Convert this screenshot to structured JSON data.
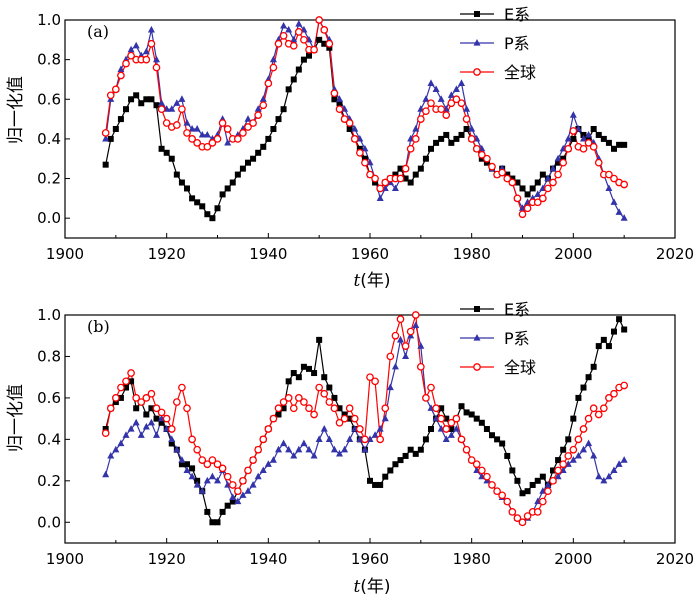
{
  "chart_data": [
    {
      "type": "line",
      "panel_label": "(a)",
      "xlabel_var": "t",
      "xlabel_unit": "(年)",
      "ylabel": "归一化值",
      "xlim": [
        1900,
        2020
      ],
      "ylim": [
        -0.1,
        1.0
      ],
      "xticks": [
        1900,
        1920,
        1940,
        1960,
        1980,
        2000,
        2020
      ],
      "yticks": [
        0.0,
        0.2,
        0.4,
        0.6,
        0.8,
        1.0
      ],
      "ytick_labels": [
        "0.0",
        "0.2",
        "0.4",
        "0.6",
        "0.8",
        "1.0"
      ],
      "grid": false,
      "legend": "top-right",
      "x": [
        1908,
        1909,
        1910,
        1911,
        1912,
        1913,
        1914,
        1915,
        1916,
        1917,
        1918,
        1919,
        1920,
        1921,
        1922,
        1923,
        1924,
        1925,
        1926,
        1927,
        1928,
        1929,
        1930,
        1931,
        1932,
        1933,
        1934,
        1935,
        1936,
        1937,
        1938,
        1939,
        1940,
        1941,
        1942,
        1943,
        1944,
        1945,
        1946,
        1947,
        1948,
        1949,
        1950,
        1951,
        1952,
        1953,
        1954,
        1955,
        1956,
        1957,
        1958,
        1959,
        1960,
        1961,
        1962,
        1963,
        1964,
        1965,
        1966,
        1967,
        1968,
        1969,
        1970,
        1971,
        1972,
        1973,
        1974,
        1975,
        1976,
        1977,
        1978,
        1979,
        1980,
        1981,
        1982,
        1983,
        1984,
        1985,
        1986,
        1987,
        1988,
        1989,
        1990,
        1991,
        1992,
        1993,
        1994,
        1995,
        1996,
        1997,
        1998,
        1999,
        2000,
        2001,
        2002,
        2003,
        2004,
        2005,
        2006,
        2007,
        2008,
        2009,
        2010
      ],
      "series": [
        {
          "name": "E系",
          "color": "#000000",
          "marker": "square",
          "values": [
            0.27,
            0.4,
            0.45,
            0.5,
            0.55,
            0.6,
            0.62,
            0.58,
            0.6,
            0.6,
            0.57,
            0.35,
            0.33,
            0.3,
            0.22,
            0.18,
            0.15,
            0.1,
            0.08,
            0.06,
            0.02,
            0.0,
            0.05,
            0.12,
            0.15,
            0.18,
            0.22,
            0.25,
            0.28,
            0.3,
            0.33,
            0.36,
            0.4,
            0.45,
            0.5,
            0.55,
            0.65,
            0.7,
            0.75,
            0.8,
            0.82,
            0.85,
            0.9,
            0.88,
            0.86,
            0.6,
            0.58,
            0.5,
            0.45,
            0.4,
            0.35,
            0.3,
            0.22,
            0.18,
            0.15,
            0.18,
            0.2,
            0.22,
            0.25,
            0.2,
            0.18,
            0.22,
            0.25,
            0.3,
            0.35,
            0.38,
            0.4,
            0.42,
            0.38,
            0.4,
            0.42,
            0.45,
            0.4,
            0.35,
            0.3,
            0.28,
            0.25,
            0.22,
            0.25,
            0.22,
            0.2,
            0.18,
            0.15,
            0.12,
            0.15,
            0.18,
            0.22,
            0.2,
            0.25,
            0.28,
            0.3,
            0.35,
            0.4,
            0.45,
            0.42,
            0.4,
            0.45,
            0.42,
            0.4,
            0.38,
            0.35,
            0.37,
            0.37
          ]
        },
        {
          "name": "P系",
          "color": "#3333aa",
          "marker": "triangle",
          "values": [
            0.4,
            0.6,
            0.65,
            0.75,
            0.8,
            0.85,
            0.87,
            0.82,
            0.84,
            0.95,
            0.8,
            0.58,
            0.55,
            0.55,
            0.58,
            0.6,
            0.48,
            0.45,
            0.45,
            0.42,
            0.42,
            0.4,
            0.42,
            0.5,
            0.38,
            0.4,
            0.42,
            0.45,
            0.5,
            0.48,
            0.55,
            0.6,
            0.7,
            0.8,
            0.9,
            0.97,
            0.95,
            0.9,
            0.98,
            0.95,
            0.9,
            0.85,
            1.0,
            0.95,
            0.9,
            0.65,
            0.6,
            0.55,
            0.5,
            0.45,
            0.4,
            0.35,
            0.28,
            0.2,
            0.1,
            0.15,
            0.18,
            0.15,
            0.2,
            0.25,
            0.4,
            0.45,
            0.55,
            0.6,
            0.68,
            0.65,
            0.6,
            0.55,
            0.62,
            0.65,
            0.68,
            0.55,
            0.45,
            0.4,
            0.35,
            0.3,
            0.25,
            0.22,
            0.25,
            0.2,
            0.18,
            0.1,
            0.05,
            0.08,
            0.1,
            0.12,
            0.15,
            0.2,
            0.25,
            0.3,
            0.35,
            0.4,
            0.52,
            0.45,
            0.4,
            0.42,
            0.38,
            0.3,
            0.22,
            0.15,
            0.08,
            0.03,
            0.0
          ]
        },
        {
          "name": "全球",
          "color": "#ff0000",
          "marker": "circle",
          "values": [
            0.43,
            0.62,
            0.65,
            0.72,
            0.78,
            0.82,
            0.8,
            0.8,
            0.8,
            0.88,
            0.76,
            0.55,
            0.48,
            0.46,
            0.47,
            0.55,
            0.43,
            0.4,
            0.38,
            0.36,
            0.36,
            0.38,
            0.4,
            0.48,
            0.45,
            0.4,
            0.4,
            0.43,
            0.46,
            0.48,
            0.52,
            0.57,
            0.68,
            0.76,
            0.88,
            0.92,
            0.88,
            0.87,
            0.94,
            0.9,
            0.85,
            0.85,
            1.0,
            0.95,
            0.88,
            0.63,
            0.55,
            0.5,
            0.48,
            0.4,
            0.33,
            0.28,
            0.22,
            0.2,
            0.15,
            0.18,
            0.2,
            0.2,
            0.2,
            0.25,
            0.35,
            0.4,
            0.5,
            0.54,
            0.58,
            0.55,
            0.55,
            0.52,
            0.58,
            0.6,
            0.58,
            0.5,
            0.4,
            0.35,
            0.32,
            0.3,
            0.26,
            0.22,
            0.23,
            0.2,
            0.18,
            0.1,
            0.02,
            0.05,
            0.08,
            0.08,
            0.1,
            0.15,
            0.18,
            0.22,
            0.28,
            0.35,
            0.44,
            0.36,
            0.35,
            0.38,
            0.36,
            0.28,
            0.22,
            0.22,
            0.2,
            0.18,
            0.17
          ]
        }
      ]
    },
    {
      "type": "line",
      "panel_label": "(b)",
      "xlabel_var": "t",
      "xlabel_unit": "(年)",
      "ylabel": "归一化值",
      "xlim": [
        1900,
        2020
      ],
      "ylim": [
        -0.1,
        1.0
      ],
      "xticks": [
        1900,
        1920,
        1940,
        1960,
        1980,
        2000,
        2020
      ],
      "yticks": [
        0.0,
        0.2,
        0.4,
        0.6,
        0.8,
        1.0
      ],
      "ytick_labels": [
        "0.0",
        "0.2",
        "0.4",
        "0.6",
        "0.8",
        "1.0"
      ],
      "grid": false,
      "legend": "top-right",
      "x": [
        1908,
        1909,
        1910,
        1911,
        1912,
        1913,
        1914,
        1915,
        1916,
        1917,
        1918,
        1919,
        1920,
        1921,
        1922,
        1923,
        1924,
        1925,
        1926,
        1927,
        1928,
        1929,
        1930,
        1931,
        1932,
        1933,
        1934,
        1935,
        1936,
        1937,
        1938,
        1939,
        1940,
        1941,
        1942,
        1943,
        1944,
        1945,
        1946,
        1947,
        1948,
        1949,
        1950,
        1951,
        1952,
        1953,
        1954,
        1955,
        1956,
        1957,
        1958,
        1959,
        1960,
        1961,
        1962,
        1963,
        1964,
        1965,
        1966,
        1967,
        1968,
        1969,
        1970,
        1971,
        1972,
        1973,
        1974,
        1975,
        1976,
        1977,
        1978,
        1979,
        1980,
        1981,
        1982,
        1983,
        1984,
        1985,
        1986,
        1987,
        1988,
        1989,
        1990,
        1991,
        1992,
        1993,
        1994,
        1995,
        1996,
        1997,
        1998,
        1999,
        2000,
        2001,
        2002,
        2003,
        2004,
        2005,
        2006,
        2007,
        2008,
        2009,
        2010
      ],
      "series": [
        {
          "name": "E系",
          "color": "#000000",
          "marker": "square",
          "values": [
            0.45,
            0.55,
            0.58,
            0.6,
            0.65,
            0.68,
            0.55,
            0.58,
            0.52,
            0.55,
            0.5,
            0.48,
            0.45,
            0.38,
            0.35,
            0.28,
            0.28,
            0.26,
            0.2,
            0.15,
            0.05,
            0.0,
            0.0,
            0.05,
            0.08,
            0.1,
            0.15,
            0.2,
            0.25,
            0.3,
            0.35,
            0.4,
            0.45,
            0.5,
            0.52,
            0.55,
            0.68,
            0.72,
            0.7,
            0.75,
            0.74,
            0.72,
            0.88,
            0.7,
            0.65,
            0.6,
            0.55,
            0.52,
            0.5,
            0.45,
            0.4,
            0.35,
            0.2,
            0.18,
            0.18,
            0.22,
            0.25,
            0.28,
            0.3,
            0.32,
            0.35,
            0.33,
            0.35,
            0.4,
            0.45,
            0.5,
            0.55,
            0.5,
            0.45,
            0.5,
            0.56,
            0.53,
            0.52,
            0.5,
            0.48,
            0.45,
            0.42,
            0.4,
            0.38,
            0.32,
            0.25,
            0.2,
            0.14,
            0.15,
            0.18,
            0.2,
            0.22,
            0.18,
            0.25,
            0.3,
            0.35,
            0.4,
            0.5,
            0.6,
            0.65,
            0.7,
            0.75,
            0.85,
            0.88,
            0.85,
            0.92,
            0.98,
            0.93
          ]
        },
        {
          "name": "P系",
          "color": "#3333aa",
          "marker": "triangle",
          "values": [
            0.23,
            0.32,
            0.35,
            0.38,
            0.42,
            0.45,
            0.48,
            0.42,
            0.46,
            0.48,
            0.42,
            0.5,
            0.45,
            0.4,
            0.35,
            0.3,
            0.25,
            0.22,
            0.18,
            0.15,
            0.2,
            0.22,
            0.2,
            0.25,
            0.18,
            0.12,
            0.1,
            0.13,
            0.15,
            0.18,
            0.22,
            0.25,
            0.28,
            0.3,
            0.35,
            0.38,
            0.35,
            0.32,
            0.35,
            0.38,
            0.35,
            0.32,
            0.4,
            0.45,
            0.4,
            0.35,
            0.33,
            0.35,
            0.4,
            0.45,
            0.4,
            0.35,
            0.4,
            0.42,
            0.45,
            0.5,
            0.65,
            0.75,
            0.88,
            0.8,
            0.9,
            0.95,
            0.85,
            0.6,
            0.55,
            0.5,
            0.45,
            0.4,
            0.42,
            0.45,
            0.4,
            0.35,
            0.3,
            0.25,
            0.22,
            0.2,
            0.18,
            0.15,
            0.12,
            0.1,
            0.05,
            0.02,
            0.0,
            0.02,
            0.05,
            0.1,
            0.15,
            0.18,
            0.2,
            0.22,
            0.25,
            0.28,
            0.3,
            0.32,
            0.35,
            0.38,
            0.32,
            0.22,
            0.2,
            0.22,
            0.25,
            0.28,
            0.3
          ]
        },
        {
          "name": "全球",
          "color": "#ff0000",
          "marker": "circle",
          "values": [
            0.43,
            0.55,
            0.6,
            0.65,
            0.68,
            0.72,
            0.6,
            0.58,
            0.6,
            0.62,
            0.55,
            0.53,
            0.5,
            0.45,
            0.58,
            0.65,
            0.55,
            0.4,
            0.35,
            0.3,
            0.28,
            0.3,
            0.28,
            0.26,
            0.22,
            0.18,
            0.15,
            0.2,
            0.25,
            0.3,
            0.35,
            0.4,
            0.45,
            0.5,
            0.55,
            0.58,
            0.6,
            0.55,
            0.6,
            0.58,
            0.55,
            0.52,
            0.65,
            0.62,
            0.58,
            0.55,
            0.48,
            0.5,
            0.55,
            0.5,
            0.45,
            0.4,
            0.7,
            0.68,
            0.4,
            0.55,
            0.8,
            0.9,
            0.98,
            0.85,
            0.92,
            1.0,
            0.75,
            0.6,
            0.65,
            0.55,
            0.5,
            0.45,
            0.48,
            0.5,
            0.4,
            0.35,
            0.3,
            0.28,
            0.25,
            0.22,
            0.18,
            0.15,
            0.13,
            0.1,
            0.05,
            0.02,
            0.0,
            0.03,
            0.05,
            0.05,
            0.1,
            0.15,
            0.2,
            0.25,
            0.28,
            0.32,
            0.35,
            0.4,
            0.45,
            0.5,
            0.55,
            0.52,
            0.55,
            0.6,
            0.62,
            0.65,
            0.66
          ]
        }
      ]
    }
  ]
}
